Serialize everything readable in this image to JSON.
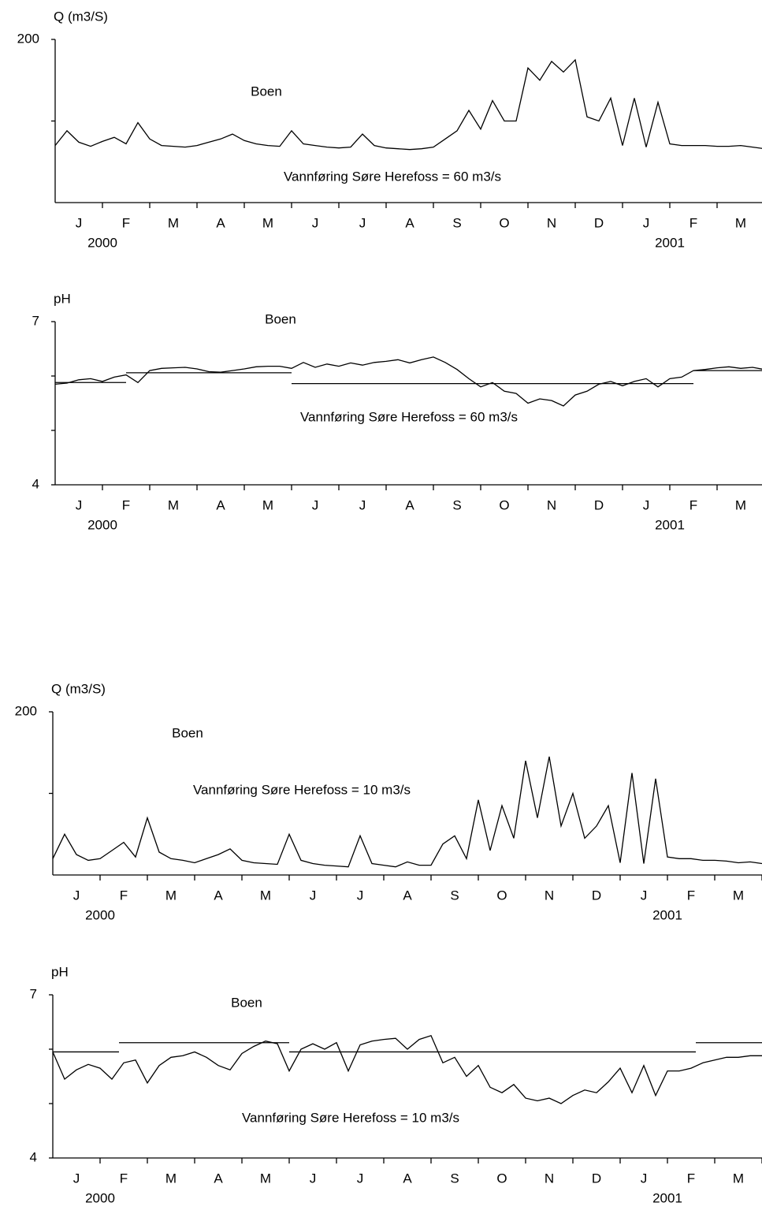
{
  "chart_data": [
    {
      "type": "line",
      "y_label": "Q (m3/S)",
      "station": "Boen",
      "annotation": "Vannføring Søre Herefoss = 60 m3/s",
      "categories": [
        "J",
        "F",
        "M",
        "A",
        "M",
        "J",
        "J",
        "A",
        "S",
        "O",
        "N",
        "D",
        "J",
        "F",
        "M"
      ],
      "year_labels": [
        "2000",
        null,
        null,
        null,
        null,
        null,
        null,
        null,
        null,
        null,
        null,
        null,
        "2001",
        null,
        null
      ],
      "xlim": [
        0,
        15
      ],
      "ylim": [
        0,
        200
      ],
      "yticks": [
        200
      ],
      "minor_yticks": [
        100
      ],
      "x": [
        0,
        0.25,
        0.5,
        0.75,
        1,
        1.25,
        1.5,
        1.75,
        2,
        2.25,
        2.5,
        2.75,
        3,
        3.25,
        3.5,
        3.75,
        4,
        4.25,
        4.5,
        4.75,
        5,
        5.25,
        5.5,
        5.75,
        6,
        6.25,
        6.5,
        6.75,
        7,
        7.25,
        7.5,
        7.75,
        8,
        8.25,
        8.5,
        8.75,
        9,
        9.25,
        9.5,
        9.75,
        10,
        10.25,
        10.5,
        10.75,
        11,
        11.25,
        11.5,
        11.75,
        12,
        12.25,
        12.5,
        12.75,
        13,
        13.25,
        13.5,
        13.75,
        14,
        14.25,
        14.5,
        14.75,
        15
      ],
      "series": [
        {
          "color": "#000000",
          "values": [
            70,
            88,
            74,
            69,
            75,
            80,
            72,
            98,
            78,
            70,
            69,
            68,
            70,
            74,
            78,
            84,
            76,
            72,
            70,
            69,
            88,
            72,
            70,
            68,
            67,
            68,
            84,
            70,
            67,
            66,
            65,
            66,
            68,
            78,
            88,
            113,
            90,
            125,
            100,
            100,
            165,
            150,
            173,
            160,
            175,
            105,
            100,
            128,
            70,
            128,
            68,
            123,
            72,
            70,
            70,
            70,
            69,
            69,
            70,
            68,
            66
          ]
        }
      ],
      "reference_lines": []
    },
    {
      "type": "line",
      "y_label": "pH",
      "station": "Boen",
      "annotation": "Vannføring Søre Herefoss = 60 m3/s",
      "categories": [
        "J",
        "F",
        "M",
        "A",
        "M",
        "J",
        "J",
        "A",
        "S",
        "O",
        "N",
        "D",
        "J",
        "F",
        "M"
      ],
      "year_labels": [
        "2000",
        null,
        null,
        null,
        null,
        null,
        null,
        null,
        null,
        null,
        null,
        null,
        "2001",
        null,
        null
      ],
      "xlim": [
        0,
        15
      ],
      "ylim": [
        4,
        7
      ],
      "yticks": [
        7,
        4
      ],
      "minor_yticks": [
        6,
        5
      ],
      "x": [
        0,
        0.25,
        0.5,
        0.75,
        1,
        1.25,
        1.5,
        1.75,
        2,
        2.25,
        2.5,
        2.75,
        3,
        3.25,
        3.5,
        3.75,
        4,
        4.25,
        4.5,
        4.75,
        5,
        5.25,
        5.5,
        5.75,
        6,
        6.25,
        6.5,
        6.75,
        7,
        7.25,
        7.5,
        7.75,
        8,
        8.25,
        8.5,
        8.75,
        9,
        9.25,
        9.5,
        9.75,
        10,
        10.25,
        10.5,
        10.75,
        11,
        11.25,
        11.5,
        11.75,
        12,
        12.25,
        12.5,
        12.75,
        13,
        13.25,
        13.5,
        13.75,
        14,
        14.25,
        14.5,
        14.75,
        15
      ],
      "series": [
        {
          "color": "#000000",
          "values": [
            5.85,
            5.87,
            5.93,
            5.95,
            5.9,
            5.98,
            6.02,
            5.88,
            6.1,
            6.14,
            6.15,
            6.16,
            6.13,
            6.08,
            6.07,
            6.1,
            6.13,
            6.17,
            6.18,
            6.18,
            6.14,
            6.25,
            6.16,
            6.22,
            6.18,
            6.24,
            6.2,
            6.25,
            6.27,
            6.3,
            6.24,
            6.3,
            6.35,
            6.25,
            6.12,
            5.95,
            5.8,
            5.88,
            5.72,
            5.68,
            5.5,
            5.58,
            5.55,
            5.45,
            5.65,
            5.72,
            5.85,
            5.9,
            5.82,
            5.9,
            5.95,
            5.8,
            5.95,
            5.98,
            6.1,
            6.12,
            6.15,
            6.17,
            6.14,
            6.16,
            6.12
          ]
        }
      ],
      "reference_lines": [
        {
          "x": [
            0,
            1.5
          ],
          "value": 5.88
        },
        {
          "x": [
            1.5,
            5
          ],
          "value": 6.06
        },
        {
          "x": [
            5,
            13.5
          ],
          "value": 5.86
        },
        {
          "x": [
            13.5,
            15
          ],
          "value": 6.1
        }
      ]
    },
    {
      "type": "line",
      "y_label": "Q (m3/S)",
      "station": "Boen",
      "annotation": "Vannføring Søre Herefoss = 10 m3/s",
      "categories": [
        "J",
        "F",
        "M",
        "A",
        "M",
        "J",
        "J",
        "A",
        "S",
        "O",
        "N",
        "D",
        "J",
        "F",
        "M"
      ],
      "year_labels": [
        "2000",
        null,
        null,
        null,
        null,
        null,
        null,
        null,
        null,
        null,
        null,
        null,
        "2001",
        null,
        null
      ],
      "xlim": [
        0,
        15
      ],
      "ylim": [
        0,
        200
      ],
      "yticks": [
        200
      ],
      "minor_yticks": [
        100
      ],
      "x": [
        0,
        0.25,
        0.5,
        0.75,
        1,
        1.25,
        1.5,
        1.75,
        2,
        2.25,
        2.5,
        2.75,
        3,
        3.25,
        3.5,
        3.75,
        4,
        4.25,
        4.5,
        4.75,
        5,
        5.25,
        5.5,
        5.75,
        6,
        6.25,
        6.5,
        6.75,
        7,
        7.25,
        7.5,
        7.75,
        8,
        8.25,
        8.5,
        8.75,
        9,
        9.25,
        9.5,
        9.75,
        10,
        10.25,
        10.5,
        10.75,
        11,
        11.25,
        11.5,
        11.75,
        12,
        12.25,
        12.5,
        12.75,
        13,
        13.25,
        13.5,
        13.75,
        14,
        14.25,
        14.5,
        14.75,
        15
      ],
      "series": [
        {
          "color": "#000000",
          "values": [
            20,
            50,
            25,
            18,
            20,
            30,
            40,
            22,
            70,
            28,
            20,
            18,
            15,
            20,
            25,
            32,
            18,
            15,
            14,
            13,
            50,
            18,
            14,
            12,
            11,
            10,
            48,
            14,
            12,
            10,
            16,
            12,
            12,
            38,
            48,
            20,
            92,
            30,
            85,
            45,
            140,
            70,
            145,
            60,
            100,
            45,
            60,
            85,
            15,
            125,
            14,
            118,
            22,
            20,
            20,
            18,
            18,
            17,
            15,
            16,
            14
          ]
        }
      ],
      "reference_lines": []
    },
    {
      "type": "line",
      "y_label": "pH",
      "station": "Boen",
      "annotation": "Vannføring Søre Herefoss = 10 m3/s",
      "categories": [
        "J",
        "F",
        "M",
        "A",
        "M",
        "J",
        "J",
        "A",
        "S",
        "O",
        "N",
        "D",
        "J",
        "F",
        "M"
      ],
      "year_labels": [
        "2000",
        null,
        null,
        null,
        null,
        null,
        null,
        null,
        null,
        null,
        null,
        null,
        "2001",
        null,
        null
      ],
      "xlim": [
        0,
        15
      ],
      "ylim": [
        4,
        7
      ],
      "yticks": [
        7,
        4
      ],
      "minor_yticks": [
        6,
        5
      ],
      "x": [
        0,
        0.25,
        0.5,
        0.75,
        1,
        1.25,
        1.5,
        1.75,
        2,
        2.25,
        2.5,
        2.75,
        3,
        3.25,
        3.5,
        3.75,
        4,
        4.25,
        4.5,
        4.75,
        5,
        5.25,
        5.5,
        5.75,
        6,
        6.25,
        6.5,
        6.75,
        7,
        7.25,
        7.5,
        7.75,
        8,
        8.25,
        8.5,
        8.75,
        9,
        9.25,
        9.5,
        9.75,
        10,
        10.25,
        10.5,
        10.75,
        11,
        11.25,
        11.5,
        11.75,
        12,
        12.25,
        12.5,
        12.75,
        13,
        13.25,
        13.5,
        13.75,
        14,
        14.25,
        14.5,
        14.75,
        15
      ],
      "series": [
        {
          "color": "#000000",
          "values": [
            5.95,
            5.45,
            5.62,
            5.72,
            5.65,
            5.45,
            5.75,
            5.8,
            5.38,
            5.7,
            5.85,
            5.88,
            5.95,
            5.85,
            5.7,
            5.62,
            5.92,
            6.05,
            6.15,
            6.1,
            5.6,
            6.0,
            6.1,
            6.0,
            6.12,
            5.6,
            6.08,
            6.15,
            6.18,
            6.2,
            6.0,
            6.18,
            6.25,
            5.75,
            5.85,
            5.5,
            5.7,
            5.3,
            5.2,
            5.35,
            5.1,
            5.05,
            5.1,
            5.0,
            5.15,
            5.25,
            5.2,
            5.4,
            5.65,
            5.2,
            5.7,
            5.15,
            5.6,
            5.6,
            5.65,
            5.75,
            5.8,
            5.85,
            5.85,
            5.88,
            5.88
          ]
        }
      ],
      "reference_lines": [
        {
          "x": [
            0,
            1.4
          ],
          "value": 5.95
        },
        {
          "x": [
            1.4,
            5
          ],
          "value": 6.12
        },
        {
          "x": [
            5,
            13.6
          ],
          "value": 5.95
        },
        {
          "x": [
            13.6,
            15
          ],
          "value": 6.12
        }
      ]
    }
  ]
}
